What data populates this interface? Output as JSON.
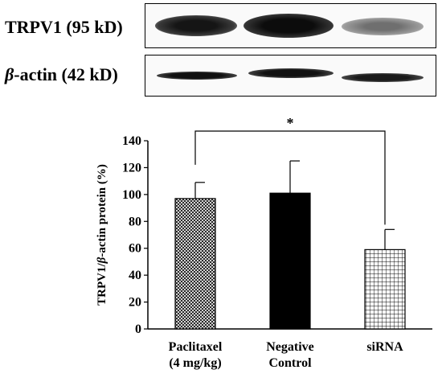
{
  "blot": {
    "rows": [
      {
        "label_main": "TRPV1 (95 kD)",
        "label_greek": ""
      },
      {
        "label_main": "-actin (42 kD)",
        "label_greek": "β"
      }
    ]
  },
  "chart_data": {
    "type": "bar",
    "categories": [
      {
        "line1": "Paclitaxel",
        "line2": "(4 mg/kg)"
      },
      {
        "line1": "Negative",
        "line2": "Control"
      },
      {
        "line1": "siRNA",
        "line2": ""
      }
    ],
    "values": [
      97,
      101,
      59
    ],
    "errors": [
      12,
      24,
      15
    ],
    "fills": [
      "crosshatch-fine",
      "solid-black",
      "grid"
    ],
    "ylabel_parts": [
      "TRPV1/",
      "β",
      "-actin protein (%)"
    ],
    "ylim": [
      0,
      140
    ],
    "yticks": [
      0,
      20,
      40,
      60,
      80,
      100,
      120,
      140
    ],
    "significance": {
      "from": 0,
      "to": 2,
      "label": "*"
    }
  }
}
